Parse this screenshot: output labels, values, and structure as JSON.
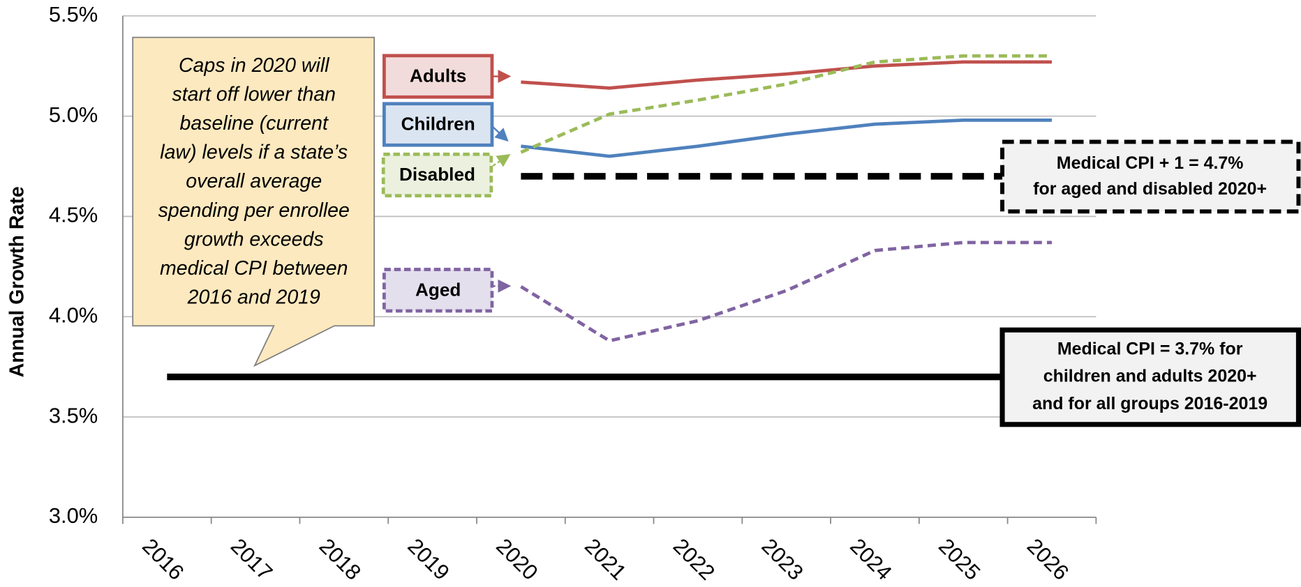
{
  "chart_data": {
    "type": "line",
    "y_label": "Annual Growth Rate",
    "categories": [
      "2016",
      "2017",
      "2018",
      "2019",
      "2020",
      "2021",
      "2022",
      "2023",
      "2024",
      "2025",
      "2026"
    ],
    "ylim": [
      3.0,
      5.5
    ],
    "yticks": [
      {
        "value": 3.0,
        "label": "3.0%"
      },
      {
        "value": 3.5,
        "label": "3.5%"
      },
      {
        "value": 4.0,
        "label": "4.0%"
      },
      {
        "value": 4.5,
        "label": "4.5%"
      },
      {
        "value": 5.0,
        "label": "5.0%"
      },
      {
        "value": 5.5,
        "label": "5.5%"
      }
    ],
    "grid": true,
    "series": [
      {
        "name": "Adults",
        "color": "#c0504d",
        "dashed": false,
        "values": [
          null,
          null,
          null,
          null,
          5.17,
          5.14,
          5.18,
          5.21,
          5.25,
          5.27,
          5.27
        ]
      },
      {
        "name": "Children",
        "color": "#4f81bd",
        "dashed": false,
        "values": [
          null,
          null,
          null,
          null,
          4.85,
          4.8,
          4.85,
          4.91,
          4.96,
          4.98,
          4.98
        ]
      },
      {
        "name": "Disabled",
        "color": "#9bbb59",
        "dashed": true,
        "values": [
          null,
          null,
          null,
          null,
          4.82,
          5.01,
          5.08,
          5.16,
          5.27,
          5.3,
          5.3
        ]
      },
      {
        "name": "Aged",
        "color": "#8064a2",
        "dashed": true,
        "values": [
          null,
          null,
          null,
          null,
          4.15,
          3.88,
          3.98,
          4.13,
          4.33,
          4.37,
          4.37
        ]
      },
      {
        "color": "#000000",
        "dashed": true,
        "values": [
          null,
          null,
          null,
          null,
          4.7,
          4.7,
          4.7,
          4.7,
          4.7,
          4.7,
          4.7
        ]
      },
      {
        "color": "#000000",
        "dashed": false,
        "values": [
          3.7,
          3.7,
          3.7,
          3.7,
          3.7,
          3.7,
          3.7,
          3.7,
          3.7,
          3.7,
          3.7
        ]
      }
    ],
    "annotations": [
      {
        "lines": [
          "Caps in 2020 will",
          "start off lower than",
          "baseline (current",
          "law) levels if a state’s",
          "overall average",
          "spending per enrollee",
          "growth exceeds",
          "medical CPI between",
          "2016 and 2019"
        ]
      },
      {
        "lines": [
          "Medical CPI + 1 = 4.7%",
          "for aged and disabled 2020+"
        ]
      },
      {
        "lines": [
          "Medical CPI = 3.7% for",
          "children and adults 2020+",
          "and for all groups 2016-2019"
        ]
      }
    ]
  }
}
